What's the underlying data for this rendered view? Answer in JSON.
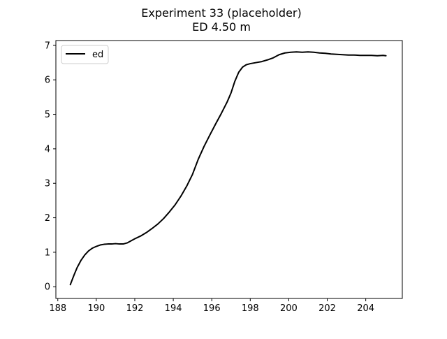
{
  "chart_data": {
    "type": "line",
    "title": "Experiment 33 (placeholder)",
    "subtitle": "ED 4.50 m",
    "xlabel": "",
    "ylabel": "",
    "xlim": [
      187.9,
      205.9
    ],
    "ylim": [
      -0.34,
      7.14
    ],
    "x_ticks": [
      188,
      190,
      192,
      194,
      196,
      198,
      200,
      202,
      204
    ],
    "y_ticks": [
      0,
      1,
      2,
      3,
      4,
      5,
      6,
      7
    ],
    "grid": false,
    "legend": {
      "placement": "top-left"
    },
    "series": [
      {
        "name": "ed",
        "color": "#000000",
        "x": [
          188.65,
          188.85,
          189.0,
          189.2,
          189.4,
          189.6,
          189.8,
          190.0,
          190.2,
          190.4,
          190.6,
          190.8,
          191.0,
          191.2,
          191.4,
          191.6,
          191.8,
          192.0,
          192.3,
          192.6,
          192.9,
          193.2,
          193.5,
          193.8,
          194.1,
          194.4,
          194.7,
          195.0,
          195.3,
          195.6,
          195.9,
          196.2,
          196.5,
          196.8,
          197.0,
          197.2,
          197.4,
          197.6,
          197.8,
          198.0,
          198.3,
          198.6,
          198.9,
          199.2,
          199.5,
          199.8,
          200.1,
          200.4,
          200.7,
          201.0,
          201.3,
          201.6,
          201.9,
          202.2,
          202.5,
          202.8,
          203.1,
          203.4,
          203.7,
          204.0,
          204.3,
          204.6,
          204.9,
          205.05
        ],
        "y": [
          0.06,
          0.35,
          0.55,
          0.76,
          0.92,
          1.04,
          1.12,
          1.17,
          1.21,
          1.23,
          1.24,
          1.24,
          1.25,
          1.24,
          1.24,
          1.27,
          1.33,
          1.39,
          1.47,
          1.57,
          1.69,
          1.82,
          1.98,
          2.17,
          2.38,
          2.63,
          2.92,
          3.26,
          3.7,
          4.07,
          4.4,
          4.72,
          5.03,
          5.36,
          5.62,
          5.96,
          6.22,
          6.37,
          6.44,
          6.47,
          6.5,
          6.53,
          6.58,
          6.64,
          6.73,
          6.78,
          6.8,
          6.81,
          6.8,
          6.81,
          6.8,
          6.78,
          6.77,
          6.75,
          6.74,
          6.73,
          6.72,
          6.72,
          6.71,
          6.71,
          6.71,
          6.7,
          6.71,
          6.7
        ]
      }
    ]
  }
}
